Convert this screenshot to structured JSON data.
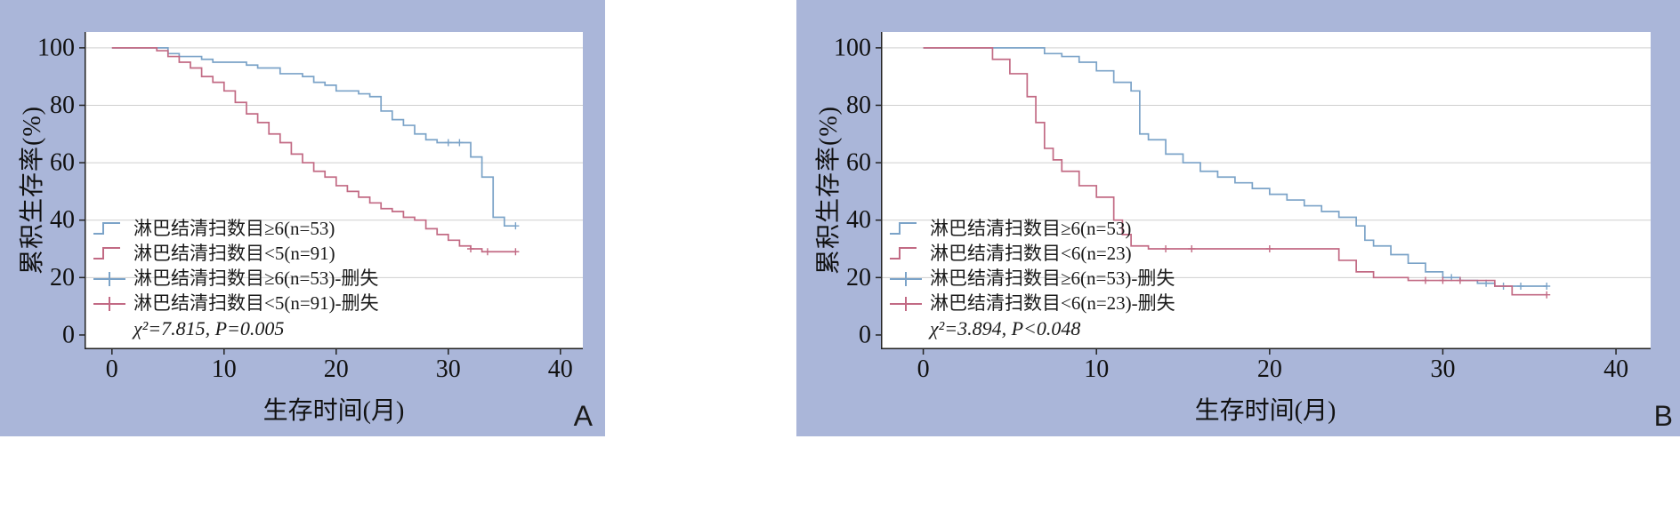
{
  "colors": {
    "panel_background": "#aab6d9",
    "plot_background": "#ffffff",
    "curve_blue": "#7ba3c8",
    "curve_red": "#c26a84",
    "grid": "#cfcfcf",
    "axis": "#222222"
  },
  "chart_data": [
    {
      "type": "line",
      "subtype": "kaplan-meier-step",
      "panel": "A",
      "xlabel": "生存时间(月)",
      "ylabel": "累积生存率(%)",
      "xlim": [
        0,
        40
      ],
      "ylim": [
        0,
        100
      ],
      "xticks": [
        0,
        10,
        20,
        30,
        40
      ],
      "yticks": [
        0,
        20,
        40,
        60,
        80,
        100
      ],
      "grid": "horizontal",
      "legend_position": "lower-left",
      "stats": "χ²=7.815, P=0.005",
      "series": [
        {
          "name": "淋巴结清扫数目≥6(n=53)",
          "color": "#7ba3c8",
          "end": 36,
          "points": [
            [
              0,
              100
            ],
            [
              5,
              98
            ],
            [
              6,
              97
            ],
            [
              8,
              96
            ],
            [
              9,
              95
            ],
            [
              12,
              94
            ],
            [
              13,
              93
            ],
            [
              15,
              91
            ],
            [
              17,
              90
            ],
            [
              18,
              88
            ],
            [
              19,
              87
            ],
            [
              20,
              85
            ],
            [
              22,
              84
            ],
            [
              23,
              83
            ],
            [
              24,
              78
            ],
            [
              25,
              75
            ],
            [
              26,
              73
            ],
            [
              27,
              70
            ],
            [
              28,
              68
            ],
            [
              29,
              67
            ],
            [
              32,
              62
            ],
            [
              33,
              55
            ],
            [
              34,
              41
            ],
            [
              35,
              38
            ]
          ],
          "censored": [
            [
              30,
              67
            ],
            [
              31,
              67
            ],
            [
              36,
              38
            ]
          ]
        },
        {
          "name": "淋巴结清扫数目<5(n=91)",
          "color": "#c26a84",
          "end": 36,
          "points": [
            [
              0,
              100
            ],
            [
              4,
              99
            ],
            [
              5,
              97
            ],
            [
              6,
              95
            ],
            [
              7,
              93
            ],
            [
              8,
              90
            ],
            [
              9,
              88
            ],
            [
              10,
              85
            ],
            [
              11,
              81
            ],
            [
              12,
              77
            ],
            [
              13,
              74
            ],
            [
              14,
              70
            ],
            [
              15,
              67
            ],
            [
              16,
              63
            ],
            [
              17,
              60
            ],
            [
              18,
              57
            ],
            [
              19,
              55
            ],
            [
              20,
              52
            ],
            [
              21,
              50
            ],
            [
              22,
              48
            ],
            [
              23,
              46
            ],
            [
              24,
              44
            ],
            [
              25,
              43
            ],
            [
              26,
              41
            ],
            [
              27,
              40
            ],
            [
              28,
              37
            ],
            [
              29,
              35
            ],
            [
              30,
              33
            ],
            [
              31,
              31
            ],
            [
              32,
              30
            ],
            [
              33,
              29
            ]
          ],
          "censored": [
            [
              32,
              30
            ],
            [
              33.5,
              29
            ],
            [
              36,
              29
            ]
          ]
        }
      ],
      "legend": [
        {
          "label": "淋巴结清扫数目≥6(n=53)",
          "type": "step",
          "color": "#7ba3c8"
        },
        {
          "label": "淋巴结清扫数目<5(n=91)",
          "type": "step",
          "color": "#c26a84"
        },
        {
          "label": "淋巴结清扫数目≥6(n=53)-删失",
          "type": "censor",
          "color": "#7ba3c8"
        },
        {
          "label": "淋巴结清扫数目<5(n=91)-删失",
          "type": "censor",
          "color": "#c26a84"
        }
      ]
    },
    {
      "type": "line",
      "subtype": "kaplan-meier-step",
      "panel": "B",
      "xlabel": "生存时间(月)",
      "ylabel": "累积生存率(%)",
      "xlim": [
        0,
        40
      ],
      "ylim": [
        0,
        100
      ],
      "xticks": [
        0,
        10,
        20,
        30,
        40
      ],
      "yticks": [
        0,
        20,
        40,
        60,
        80,
        100
      ],
      "grid": "horizontal",
      "legend_position": "lower-left",
      "stats": "χ²=3.894, P<0.048",
      "series": [
        {
          "name": "淋巴结清扫数目≥6(n=53)",
          "color": "#7ba3c8",
          "end": 36,
          "points": [
            [
              0,
              100
            ],
            [
              7,
              98
            ],
            [
              8,
              97
            ],
            [
              9,
              95
            ],
            [
              10,
              92
            ],
            [
              11,
              88
            ],
            [
              12,
              85
            ],
            [
              12.5,
              70
            ],
            [
              13,
              68
            ],
            [
              14,
              63
            ],
            [
              15,
              60
            ],
            [
              16,
              57
            ],
            [
              17,
              55
            ],
            [
              18,
              53
            ],
            [
              19,
              51
            ],
            [
              20,
              49
            ],
            [
              21,
              47
            ],
            [
              22,
              45
            ],
            [
              23,
              43
            ],
            [
              24,
              41
            ],
            [
              25,
              38
            ],
            [
              25.5,
              33
            ],
            [
              26,
              31
            ],
            [
              27,
              28
            ],
            [
              28,
              25
            ],
            [
              29,
              22
            ],
            [
              30,
              20
            ],
            [
              31,
              19
            ],
            [
              32,
              18
            ],
            [
              33,
              17
            ]
          ],
          "censored": [
            [
              30.5,
              20
            ],
            [
              32.5,
              18
            ],
            [
              33.5,
              17
            ],
            [
              34.5,
              17
            ],
            [
              36,
              17
            ]
          ]
        },
        {
          "name": "淋巴结清扫数目<6(n=23)",
          "color": "#c26a84",
          "end": 36,
          "points": [
            [
              0,
              100
            ],
            [
              4,
              96
            ],
            [
              5,
              91
            ],
            [
              6,
              83
            ],
            [
              6.5,
              74
            ],
            [
              7,
              65
            ],
            [
              7.5,
              61
            ],
            [
              8,
              57
            ],
            [
              9,
              52
            ],
            [
              10,
              48
            ],
            [
              11,
              40
            ],
            [
              11.5,
              35
            ],
            [
              12,
              31
            ],
            [
              13,
              30
            ],
            [
              24,
              26
            ],
            [
              25,
              22
            ],
            [
              26,
              20
            ],
            [
              28,
              19
            ],
            [
              33,
              17
            ],
            [
              34,
              14
            ]
          ],
          "censored": [
            [
              14,
              30
            ],
            [
              15.5,
              30
            ],
            [
              20,
              30
            ],
            [
              29,
              19
            ],
            [
              30,
              19
            ],
            [
              31,
              19
            ],
            [
              36,
              14
            ]
          ]
        }
      ],
      "legend": [
        {
          "label": "淋巴结清扫数目≥6(n=53)",
          "type": "step",
          "color": "#7ba3c8"
        },
        {
          "label": "淋巴结清扫数目<6(n=23)",
          "type": "step",
          "color": "#c26a84"
        },
        {
          "label": "淋巴结清扫数目≥6(n=53)-删失",
          "type": "censor",
          "color": "#7ba3c8"
        },
        {
          "label": "淋巴结清扫数目<6(n=23)-删失",
          "type": "censor",
          "color": "#c26a84"
        }
      ]
    }
  ]
}
